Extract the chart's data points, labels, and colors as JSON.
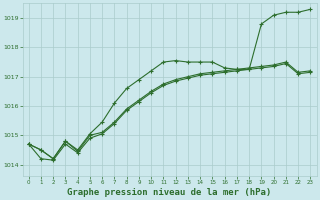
{
  "background_color": "#cce8ec",
  "grid_color": "#aacccc",
  "line_color": "#2d6e2d",
  "xlabel": "Graphe pression niveau de la mer (hPa)",
  "xlabel_fontsize": 6.5,
  "xlim": [
    -0.5,
    23.5
  ],
  "ylim": [
    1013.6,
    1019.5
  ],
  "yticks": [
    1014,
    1015,
    1016,
    1017,
    1018,
    1019
  ],
  "xticks": [
    0,
    1,
    2,
    3,
    4,
    5,
    6,
    7,
    8,
    9,
    10,
    11,
    12,
    13,
    14,
    15,
    16,
    17,
    18,
    19,
    20,
    21,
    22,
    23
  ],
  "line1_x": [
    0,
    1,
    2,
    3,
    4,
    5,
    6,
    7,
    8,
    9,
    10,
    11,
    12,
    13,
    14,
    15,
    16,
    17,
    18,
    19,
    20,
    21,
    22,
    23
  ],
  "line1_y": [
    1014.7,
    1014.5,
    1014.2,
    1014.8,
    1014.5,
    1015.05,
    1015.45,
    1016.1,
    1016.6,
    1016.9,
    1017.2,
    1017.5,
    1017.55,
    1017.5,
    1017.5,
    1017.5,
    1017.3,
    1017.25,
    1017.25,
    1018.8,
    1019.1,
    1019.2,
    1019.2,
    1019.3
  ],
  "line2_x": [
    0,
    1,
    2,
    3,
    4,
    5,
    6,
    7,
    8,
    9,
    10,
    11,
    12,
    13,
    14,
    15,
    16,
    17,
    18,
    19,
    20,
    21,
    22,
    23
  ],
  "line2_y": [
    1014.7,
    1014.5,
    1014.2,
    1014.8,
    1014.45,
    1015.0,
    1015.1,
    1015.45,
    1015.9,
    1016.2,
    1016.5,
    1016.75,
    1016.9,
    1017.0,
    1017.1,
    1017.15,
    1017.2,
    1017.25,
    1017.3,
    1017.35,
    1017.4,
    1017.5,
    1017.15,
    1017.2
  ],
  "line3_x": [
    0,
    1,
    2,
    3,
    4,
    5,
    6,
    7,
    8,
    9,
    10,
    11,
    12,
    13,
    14,
    15,
    16,
    17,
    18,
    19,
    20,
    21,
    22,
    23
  ],
  "line3_y": [
    1014.7,
    1014.2,
    1014.15,
    1014.7,
    1014.4,
    1014.9,
    1015.05,
    1015.4,
    1015.85,
    1016.15,
    1016.45,
    1016.7,
    1016.85,
    1016.95,
    1017.05,
    1017.1,
    1017.15,
    1017.2,
    1017.25,
    1017.3,
    1017.35,
    1017.45,
    1017.1,
    1017.15
  ]
}
